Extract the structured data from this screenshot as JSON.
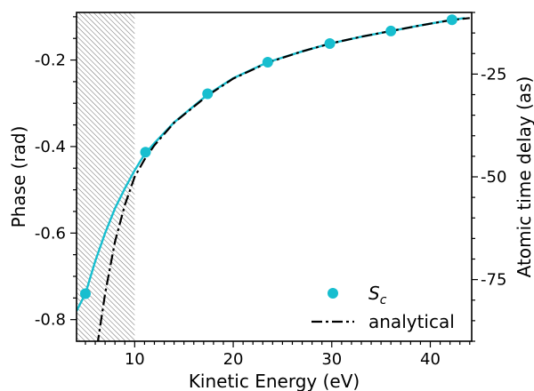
{
  "chart_data": {
    "type": "line",
    "xlabel": "Kinetic Energy (eV)",
    "ylabel": "Phase (rad)",
    "y2label": "Atomic time delay (as)",
    "xlim": [
      4.1,
      44.2
    ],
    "ylim": [
      -0.85,
      -0.09
    ],
    "y2lim": [
      -90,
      -10
    ],
    "x_ticks": [
      10,
      20,
      30,
      40
    ],
    "x_tick_labels": [
      "10",
      "20",
      "30",
      "40"
    ],
    "y_ticks": [
      -0.8,
      -0.6,
      -0.4,
      -0.2
    ],
    "y_tick_labels": [
      "-0.8",
      "-0.6",
      "-0.4",
      "-0.2"
    ],
    "y2_ticks": [
      -75,
      -50,
      -25
    ],
    "y2_tick_labels": [
      "-75",
      "-50",
      "-25"
    ],
    "shaded_region": [
      4.1,
      10
    ],
    "legend_position": "bottom-right",
    "grid": false,
    "series": [
      {
        "name": "S_c",
        "kind": "line+markers",
        "color": "#17becf",
        "x": [
          4.1,
          5,
          6,
          7,
          8,
          9,
          10,
          11,
          12,
          14,
          17.4,
          20,
          23.5,
          27,
          29.8,
          33,
          36,
          39,
          42.2,
          43.5
        ],
        "y": [
          -0.78,
          -0.74,
          -0.665,
          -0.6,
          -0.543,
          -0.497,
          -0.455,
          -0.418,
          -0.392,
          -0.344,
          -0.28,
          -0.242,
          -0.205,
          -0.18,
          -0.162,
          -0.146,
          -0.133,
          -0.12,
          -0.107,
          -0.103
        ],
        "markers_x": [
          5,
          11.1,
          17.4,
          23.5,
          29.8,
          36,
          42.2
        ],
        "markers_y": [
          -0.74,
          -0.413,
          -0.278,
          -0.205,
          -0.162,
          -0.133,
          -0.107
        ]
      },
      {
        "name": "analytical",
        "kind": "dash-dot",
        "color": "#000000",
        "x": [
          6.2,
          7,
          8,
          9,
          10,
          11,
          12,
          14,
          17.4,
          20,
          23.5,
          27,
          30,
          33,
          36,
          39,
          42,
          44
        ],
        "y": [
          -0.86,
          -0.74,
          -0.62,
          -0.535,
          -0.47,
          -0.43,
          -0.397,
          -0.345,
          -0.282,
          -0.243,
          -0.206,
          -0.18,
          -0.161,
          -0.146,
          -0.133,
          -0.12,
          -0.108,
          -0.103
        ]
      }
    ],
    "legend": [
      {
        "label_main": "S",
        "label_sub": "c",
        "marker": "dot"
      },
      {
        "label_main": "analytical",
        "label_sub": "",
        "marker": "dash-dot"
      }
    ]
  }
}
